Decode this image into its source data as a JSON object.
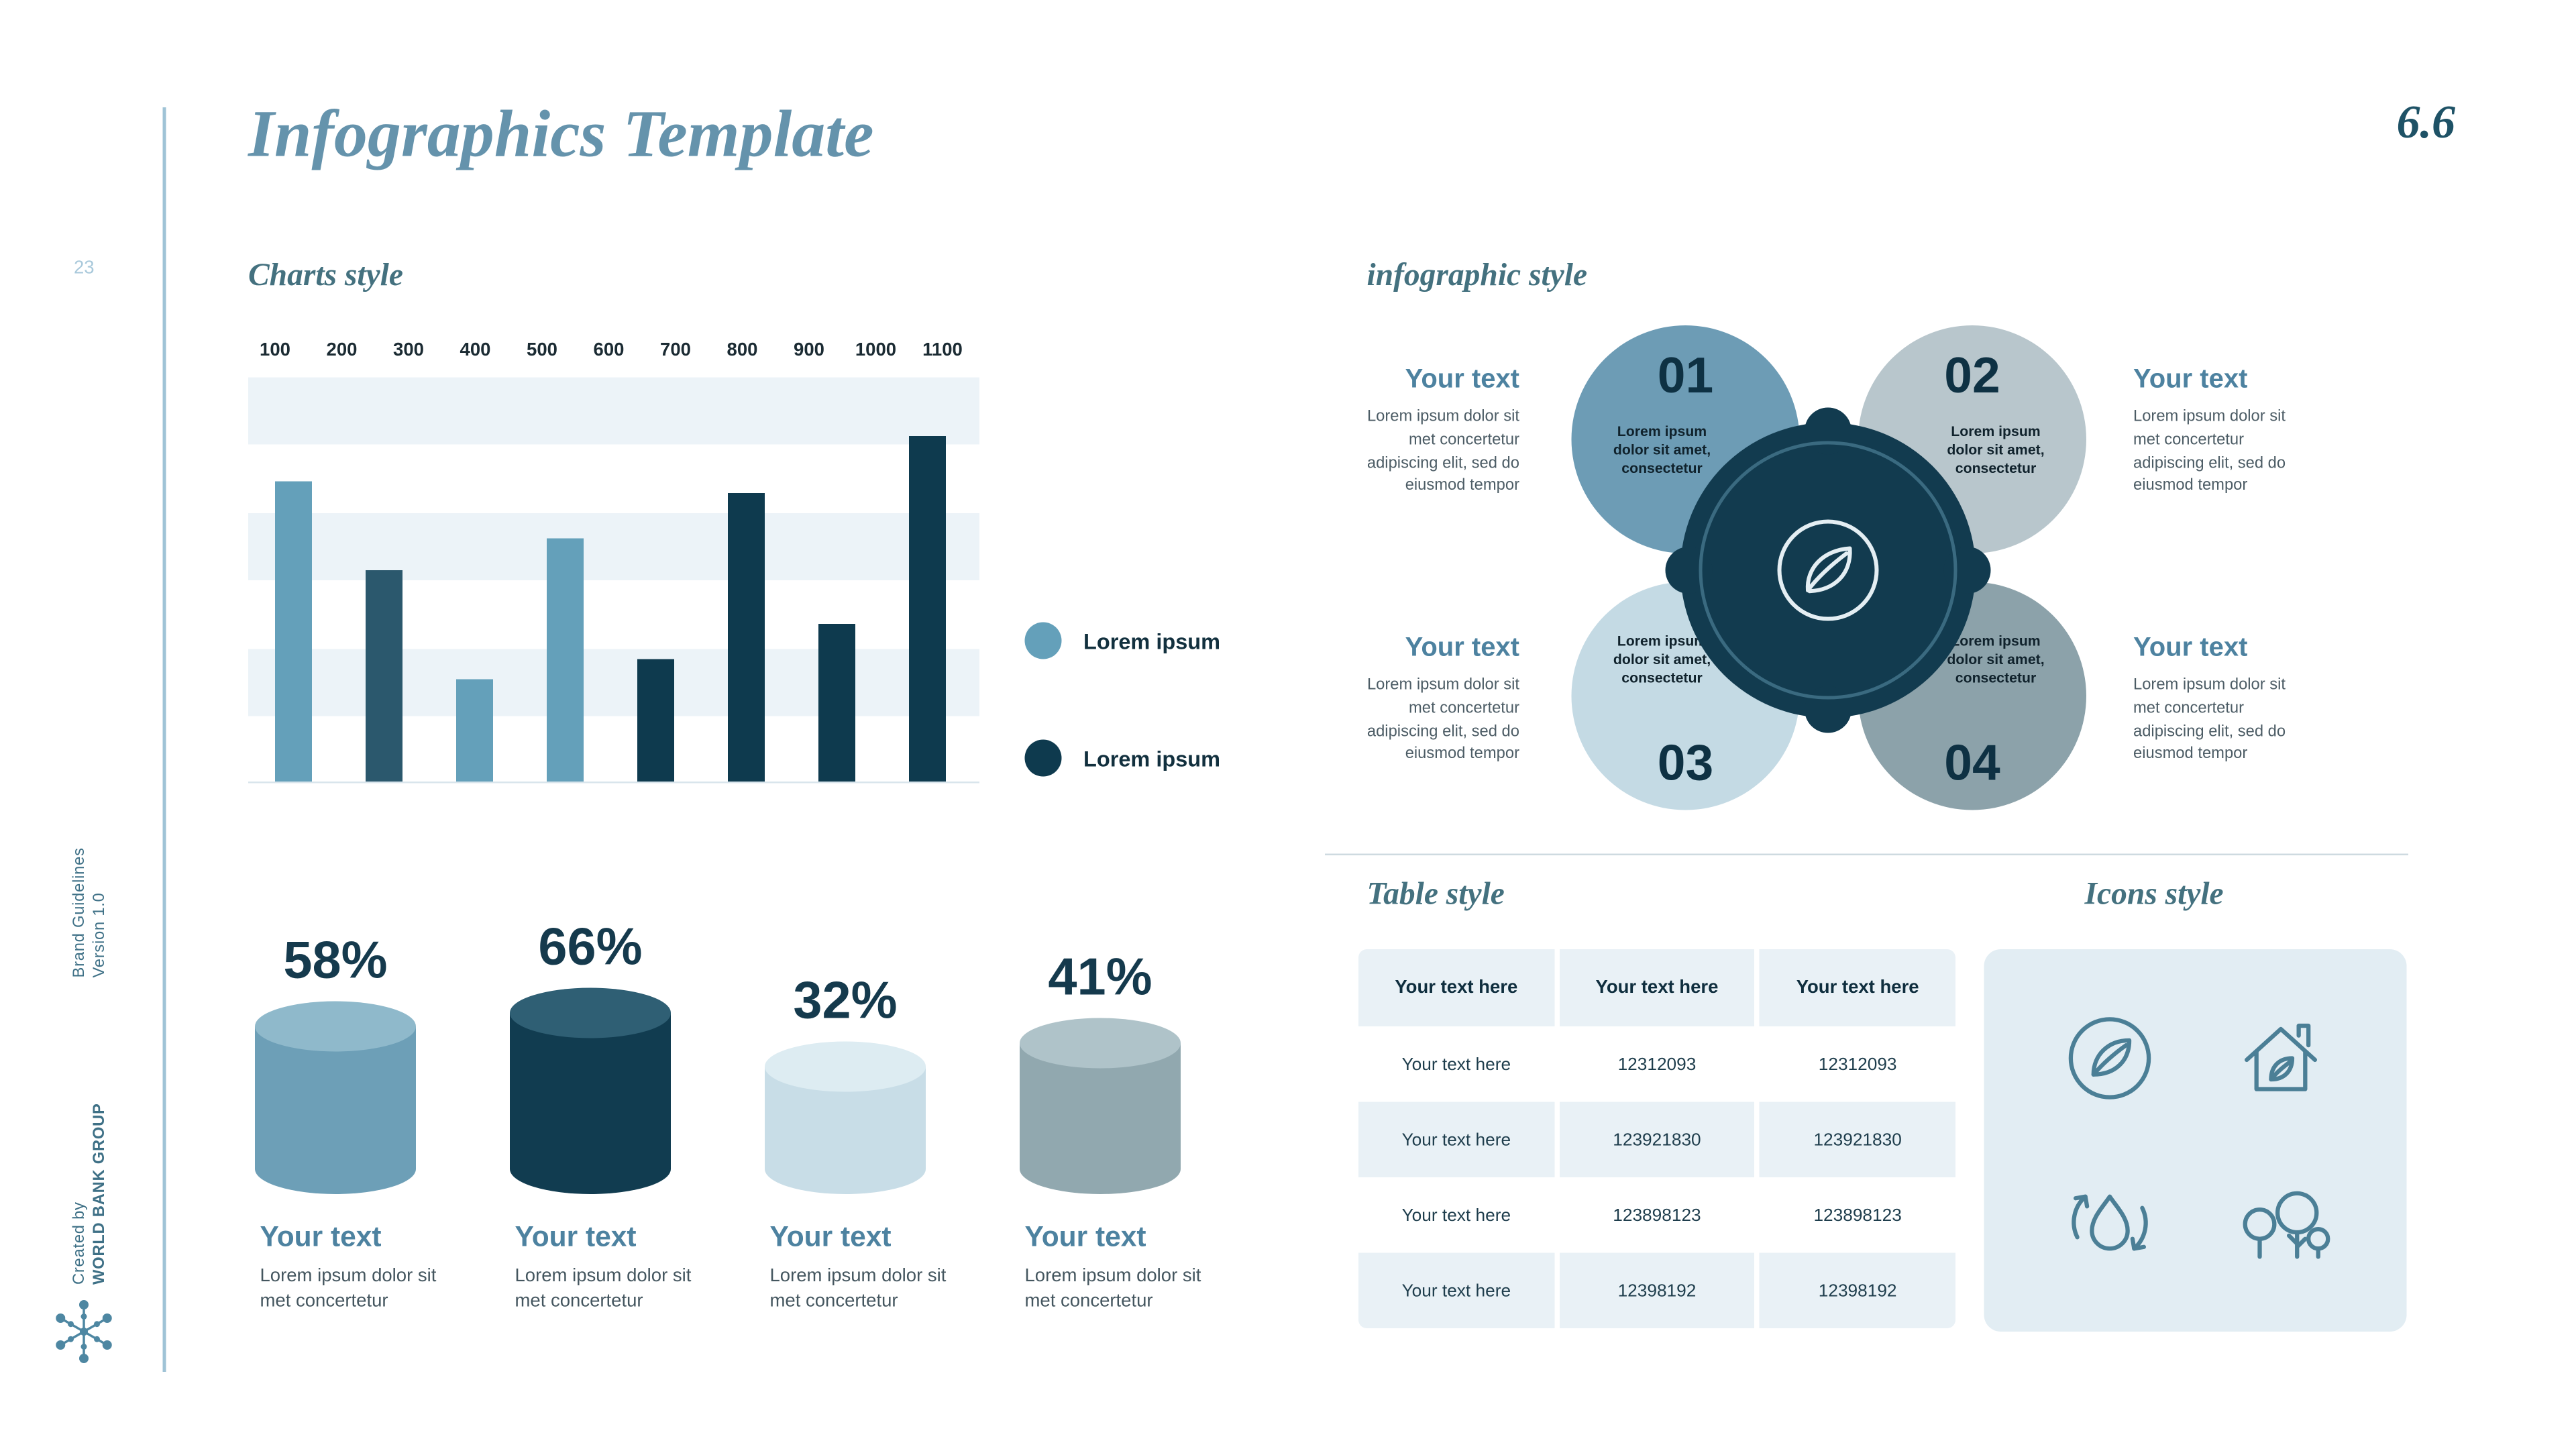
{
  "page": {
    "title": "Infographics Template",
    "section_number": "6.6",
    "page_number": "23",
    "side_note_top": [
      "Brand Guidelines",
      "Version 1.0"
    ],
    "side_note_bottom": [
      "Created by",
      "WORLD BANK GROUP"
    ]
  },
  "colors": {
    "accent_light": "#64A0BA",
    "accent_mid": "#2B586D",
    "accent_dark": "#0E3A4E",
    "heading_blue": "#6593AC",
    "teal_heading": "#44717F",
    "label_teal": "#4D82A0",
    "stripe_blue": "#E9F1F6",
    "panel_blue": "#E2EDF3"
  },
  "charts_section": {
    "heading": "Charts style",
    "legend": [
      {
        "label": "Lorem ipsum",
        "color": "#64A0BA"
      },
      {
        "label": "Lorem ipsum",
        "color": "#0E3A4E"
      }
    ],
    "cylinders": [
      {
        "percent": "58%",
        "body_color": "#6D9FB7",
        "top_color": "#8FB9CB",
        "height": 100,
        "label": "Your text",
        "desc": "Lorem ipsum dolor sit met concertetur"
      },
      {
        "percent": "66%",
        "body_color": "#113C50",
        "top_color": "#2F5F74",
        "height": 108,
        "label": "Your text",
        "desc": "Lorem ipsum dolor sit met concertetur"
      },
      {
        "percent": "32%",
        "body_color": "#C8DDE7",
        "top_color": "#DDECF2",
        "height": 76,
        "label": "Your text",
        "desc": "Lorem ipsum dolor sit met concertetur"
      },
      {
        "percent": "41%",
        "body_color": "#91A8AF",
        "top_color": "#AFC3C9",
        "height": 90,
        "label": "Your text",
        "desc": "Lorem ipsum dolor sit met concertetur"
      }
    ]
  },
  "chart_data": [
    {
      "type": "bar",
      "title": "Charts style",
      "x_ticks": [
        "100",
        "200",
        "300",
        "400",
        "500",
        "600",
        "700",
        "800",
        "900",
        "1000",
        "1100"
      ],
      "values_percent": [
        74,
        52,
        25,
        60,
        30,
        71,
        39,
        85
      ],
      "bar_colors": [
        "#64A0BA",
        "#2B586D",
        "#64A0BA",
        "#64A0BA",
        "#0E3A4E",
        "#0E3A4E",
        "#0E3A4E",
        "#0E3A4E"
      ],
      "legend": [
        "Lorem ipsum",
        "Lorem ipsum"
      ],
      "grid": "horizontal-bands",
      "legend_position": "right"
    },
    {
      "type": "cylinder-percent",
      "categories": [
        "Your text",
        "Your text",
        "Your text",
        "Your text"
      ],
      "values": [
        "58%",
        "66%",
        "32%",
        "41%"
      ]
    }
  ],
  "infographic_section": {
    "heading": "infographic style",
    "center_icon": "leaf-icon",
    "items": [
      {
        "number": "01",
        "position": "top-left",
        "circle_color": "#6D9CB5",
        "circle_text": "Lorem ipsum dolor sit amet, consectetur",
        "title": "Your text",
        "desc": "Lorem ipsum dolor sit met concertetur adipiscing elit, sed do eiusmod tempor"
      },
      {
        "number": "02",
        "position": "top-right",
        "circle_color": "#B8C6CC",
        "circle_text": "Lorem ipsum dolor sit amet, consectetur",
        "title": "Your text",
        "desc": "Lorem ipsum dolor sit met concertetur adipiscing elit, sed do eiusmod tempor"
      },
      {
        "number": "03",
        "position": "bottom-left",
        "circle_color": "#C4DAE4",
        "circle_text": "Lorem ipsum dolor sit amet, consectetur",
        "title": "Your text",
        "desc": "Lorem ipsum dolor sit met concertetur adipiscing elit, sed do eiusmod tempor"
      },
      {
        "number": "04",
        "position": "bottom-right",
        "circle_color": "#8CA2AA",
        "circle_text": "Lorem ipsum dolor sit amet, consectetur",
        "title": "Your text",
        "desc": "Lorem ipsum dolor sit met concertetur adipiscing elit, sed do eiusmod tempor"
      }
    ]
  },
  "table_section": {
    "heading": "Table style",
    "headers": [
      "Your text here",
      "Your text here",
      "Your text here"
    ],
    "rows": [
      [
        "Your text here",
        "12312093",
        "12312093"
      ],
      [
        "Your text here",
        "123921830",
        "123921830"
      ],
      [
        "Your text here",
        "123898123",
        "123898123"
      ],
      [
        "Your text here",
        "12398192",
        "12398192"
      ]
    ]
  },
  "icons_section": {
    "heading": "Icons style",
    "icons": [
      "leaf-circle-icon",
      "eco-house-icon",
      "water-recycle-icon",
      "trees-icon"
    ]
  }
}
